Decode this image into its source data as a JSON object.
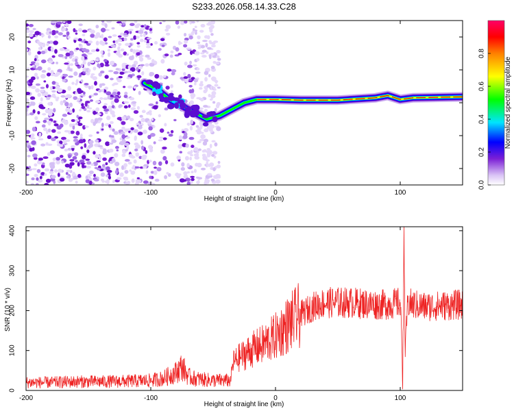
{
  "chart_data": [
    {
      "type": "heatmap",
      "title": "S233.2026.058.14.33.C28",
      "xlabel": "Height of straight line (km)",
      "ylabel": "Frequency (Hz)",
      "xlim": [
        -200,
        150
      ],
      "ylim": [
        -25,
        25
      ],
      "x_ticks": [
        -200,
        -100,
        0,
        100
      ],
      "x_tick_labels": [
        "-200",
        "-100",
        "0",
        "100"
      ],
      "y_ticks": [
        -20,
        -10,
        0,
        10,
        20
      ],
      "y_tick_labels": [
        "-20",
        "-10",
        "0",
        "10",
        "20"
      ],
      "line_trace": {
        "description_units": "km vs Hz",
        "x": [
          -105,
          -95,
          -85,
          -75,
          -65,
          -55,
          -45,
          -35,
          -25,
          -15,
          -5,
          0,
          20,
          50,
          80,
          90,
          100,
          110,
          150
        ],
        "y": [
          6,
          4,
          1,
          -1,
          -3,
          -5,
          -4,
          -2,
          0,
          1,
          1,
          1,
          0.8,
          0.8,
          1.5,
          2.2,
          1.0,
          1.5,
          1.8
        ]
      },
      "colorbar": {
        "label": "Normalized spectral amplitude",
        "range": [
          0.0,
          1.0
        ],
        "ticks": [
          0.0,
          0.2,
          0.4,
          0.6,
          0.8
        ],
        "tick_labels": [
          "0.0",
          "0.2",
          "0.4",
          "0.6",
          "0.8"
        ],
        "colors": [
          "#ffffff",
          "#7b1fd6",
          "#0000ff",
          "#00e5ff",
          "#00ff00",
          "#ffff00",
          "#ff8000",
          "#ff0000",
          "#ff0066"
        ]
      }
    },
    {
      "type": "line",
      "xlabel": "Height of straight line (km)",
      "ylabel": "SNR (10 * v/v)",
      "xlim": [
        -200,
        150
      ],
      "ylim": [
        0,
        410
      ],
      "x_ticks": [
        -200,
        -100,
        0,
        100
      ],
      "x_tick_labels": [
        "-200",
        "-100",
        "0",
        "100"
      ],
      "y_ticks": [
        0,
        100,
        200,
        300,
        400
      ],
      "y_tick_labels": [
        "0",
        "100",
        "200",
        "300",
        "400"
      ],
      "color": "#ee2222",
      "series": [
        {
          "name": "SNR",
          "x": [
            -200,
            -180,
            -160,
            -140,
            -120,
            -100,
            -90,
            -80,
            -75,
            -70,
            -65,
            -60,
            -50,
            -40,
            -36,
            -34,
            -30,
            -20,
            -10,
            0,
            10,
            20,
            30,
            40,
            60,
            80,
            90,
            100,
            102,
            103,
            104,
            106,
            110,
            120,
            150
          ],
          "y": [
            20,
            20,
            22,
            22,
            23,
            25,
            30,
            45,
            60,
            35,
            30,
            28,
            25,
            25,
            25,
            70,
            80,
            100,
            115,
            135,
            165,
            190,
            210,
            220,
            220,
            215,
            215,
            220,
            60,
            360,
            100,
            220,
            215,
            210,
            215
          ]
        }
      ]
    }
  ]
}
